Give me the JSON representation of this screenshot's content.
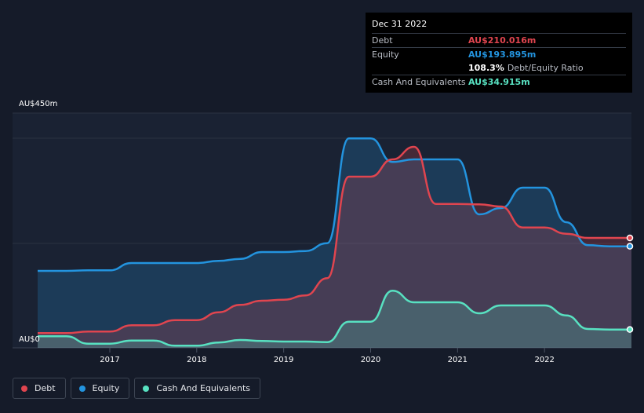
{
  "tooltip": {
    "date": "Dec 31 2022",
    "debt_label": "Debt",
    "debt_value": "AU$210.016m",
    "equity_label": "Equity",
    "equity_value": "AU$193.895m",
    "ratio_value": "108.3%",
    "ratio_label": "Debt/Equity Ratio",
    "cash_label": "Cash And Equivalents",
    "cash_value": "AU$34.915m"
  },
  "legend": {
    "debt": "Debt",
    "equity": "Equity",
    "cash": "Cash And Equivalents"
  },
  "colors": {
    "debt": "#e0454f",
    "equity": "#2394df",
    "cash": "#58e1c1"
  },
  "chart_data": {
    "type": "area",
    "currency": "AU$",
    "y_top_label": "AU$450m",
    "y_bottom_label": "AU$0",
    "ylim": [
      0,
      450
    ],
    "xlim": [
      2016.17,
      2023.0
    ],
    "x_ticks": [
      2017,
      2018,
      2019,
      2020,
      2021,
      2022
    ],
    "x_tick_labels": [
      "2017",
      "2018",
      "2019",
      "2020",
      "2021",
      "2022"
    ],
    "series": [
      {
        "name": "Debt",
        "points": [
          [
            2016.17,
            28
          ],
          [
            2016.5,
            28
          ],
          [
            2016.75,
            31
          ],
          [
            2017.0,
            31
          ],
          [
            2017.25,
            43
          ],
          [
            2017.5,
            43
          ],
          [
            2017.75,
            53
          ],
          [
            2018.0,
            53
          ],
          [
            2018.25,
            68
          ],
          [
            2018.5,
            82
          ],
          [
            2018.75,
            90
          ],
          [
            2019.0,
            92
          ],
          [
            2019.25,
            100
          ],
          [
            2019.5,
            133
          ],
          [
            2019.75,
            327
          ],
          [
            2020.0,
            327
          ],
          [
            2020.25,
            360
          ],
          [
            2020.5,
            384
          ],
          [
            2020.75,
            275
          ],
          [
            2021.0,
            275
          ],
          [
            2021.25,
            274
          ],
          [
            2021.5,
            270
          ],
          [
            2021.75,
            230
          ],
          [
            2022.0,
            230
          ],
          [
            2022.25,
            218
          ],
          [
            2022.5,
            210
          ],
          [
            2022.75,
            210
          ],
          [
            2023.0,
            210
          ]
        ]
      },
      {
        "name": "Equity",
        "points": [
          [
            2016.17,
            147
          ],
          [
            2016.5,
            147
          ],
          [
            2016.75,
            148
          ],
          [
            2017.0,
            148
          ],
          [
            2017.25,
            162
          ],
          [
            2017.5,
            162
          ],
          [
            2017.75,
            162
          ],
          [
            2018.0,
            162
          ],
          [
            2018.25,
            166
          ],
          [
            2018.5,
            170
          ],
          [
            2018.75,
            183
          ],
          [
            2019.0,
            183
          ],
          [
            2019.25,
            185
          ],
          [
            2019.5,
            200
          ],
          [
            2019.75,
            400
          ],
          [
            2020.0,
            400
          ],
          [
            2020.25,
            355
          ],
          [
            2020.5,
            360
          ],
          [
            2020.75,
            360
          ],
          [
            2021.0,
            360
          ],
          [
            2021.25,
            255
          ],
          [
            2021.5,
            267
          ],
          [
            2021.75,
            306
          ],
          [
            2022.0,
            306
          ],
          [
            2022.25,
            240
          ],
          [
            2022.5,
            196
          ],
          [
            2022.75,
            194
          ],
          [
            2023.0,
            194
          ]
        ]
      },
      {
        "name": "Cash And Equivalents",
        "points": [
          [
            2016.17,
            22
          ],
          [
            2016.5,
            22
          ],
          [
            2016.75,
            8
          ],
          [
            2017.0,
            8
          ],
          [
            2017.25,
            14
          ],
          [
            2017.5,
            14
          ],
          [
            2017.75,
            4
          ],
          [
            2018.0,
            4
          ],
          [
            2018.25,
            10
          ],
          [
            2018.5,
            15
          ],
          [
            2018.75,
            13
          ],
          [
            2019.0,
            12
          ],
          [
            2019.25,
            12
          ],
          [
            2019.5,
            11
          ],
          [
            2019.75,
            50
          ],
          [
            2020.0,
            50
          ],
          [
            2020.25,
            109
          ],
          [
            2020.5,
            87
          ],
          [
            2020.75,
            87
          ],
          [
            2021.0,
            87
          ],
          [
            2021.25,
            66
          ],
          [
            2021.5,
            81
          ],
          [
            2021.75,
            81
          ],
          [
            2022.0,
            81
          ],
          [
            2022.25,
            62
          ],
          [
            2022.5,
            36
          ],
          [
            2022.75,
            35
          ],
          [
            2023.0,
            35
          ]
        ]
      }
    ]
  }
}
